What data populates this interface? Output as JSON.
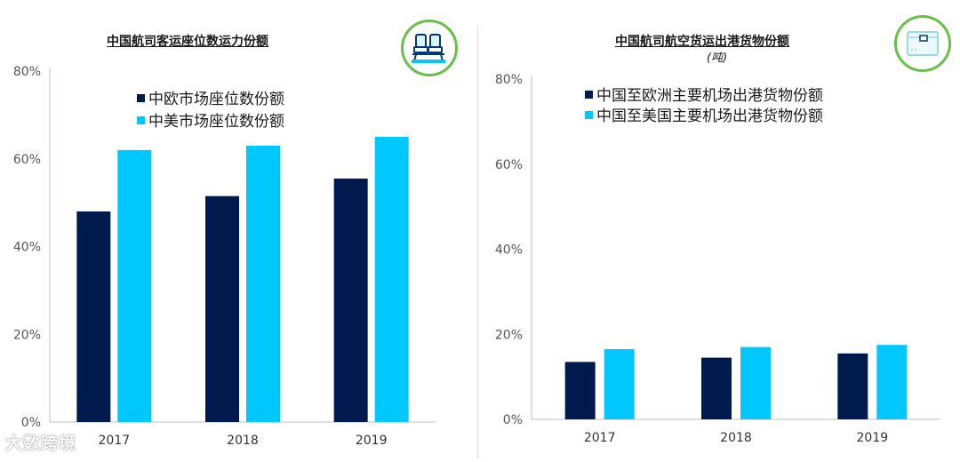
{
  "colors": {
    "dark": "#001a4d",
    "light": "#00c8ff",
    "axis": "#bfbfbf",
    "icon_ring": "#6abf4b"
  },
  "icons": {
    "left": "airplane-seats-icon",
    "right": "cargo-box-icon"
  },
  "watermark": "大数跨境",
  "chart_data": [
    {
      "type": "bar",
      "title": "中国航司客运座位数运力份额",
      "categories": [
        "2017",
        "2018",
        "2019"
      ],
      "series": [
        {
          "name": "中欧市场座位数份额",
          "values": [
            48,
            51.5,
            55.5
          ]
        },
        {
          "name": "中美市场座位数份额",
          "values": [
            62,
            63,
            65
          ]
        }
      ],
      "yticks": [
        "0%",
        "20%",
        "40%",
        "60%",
        "80%"
      ],
      "ylim": [
        0,
        80
      ],
      "legend": "top"
    },
    {
      "type": "bar",
      "title": "中国航司航空货运出港货物份额",
      "subtitle": "(吨)",
      "categories": [
        "2017",
        "2018",
        "2019"
      ],
      "series": [
        {
          "name": "中国至欧洲主要机场出港货物份额",
          "values": [
            13.5,
            14.5,
            15.5
          ]
        },
        {
          "name": "中国至美国主要机场出港货物份额",
          "values": [
            16.5,
            17,
            17.5
          ]
        }
      ],
      "yticks": [
        "0%",
        "20%",
        "40%",
        "60%",
        "80%"
      ],
      "ylim": [
        0,
        80
      ],
      "legend": "top"
    }
  ]
}
